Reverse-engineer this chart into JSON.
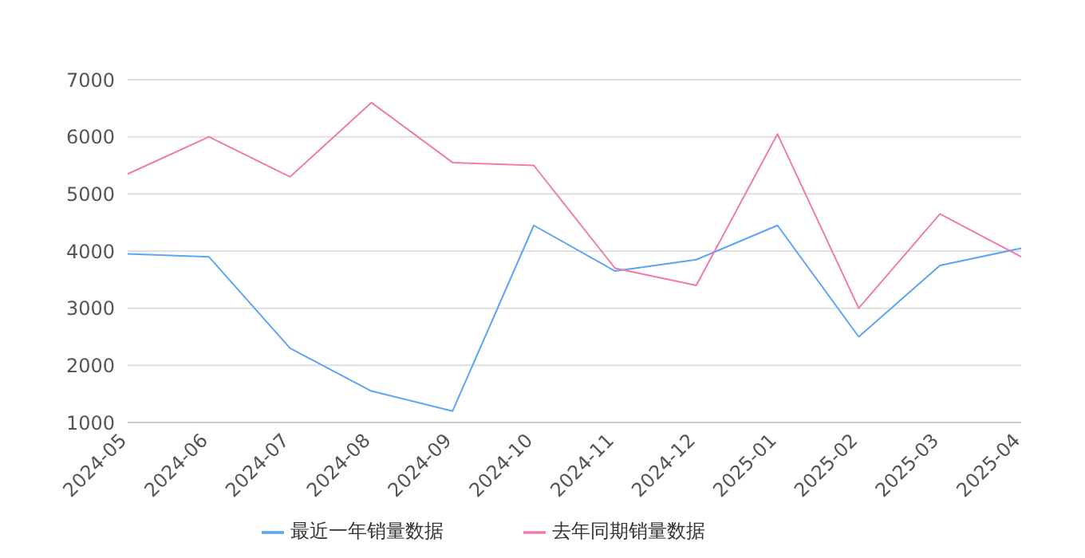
{
  "chart_data": {
    "type": "line",
    "categories": [
      "2024-05",
      "2024-06",
      "2024-07",
      "2024-08",
      "2024-09",
      "2024-10",
      "2024-11",
      "2024-12",
      "2025-01",
      "2025-02",
      "2025-03",
      "2025-04"
    ],
    "series": [
      {
        "name": "最近一年销量数据",
        "color": "#5aa5f5",
        "values": [
          3950,
          3900,
          2300,
          1550,
          1200,
          4450,
          3650,
          3850,
          4450,
          2500,
          3750,
          4050
        ]
      },
      {
        "name": "去年同期销量数据",
        "color": "#f07ab0",
        "values": [
          5350,
          6000,
          5300,
          6600,
          5550,
          5500,
          3700,
          3400,
          6050,
          3000,
          4650,
          3900
        ]
      }
    ],
    "ylim": [
      1000,
      7000
    ],
    "yticks": [
      1000,
      2000,
      3000,
      4000,
      5000,
      6000,
      7000
    ],
    "grid": "y",
    "legend": "bottom",
    "marker": "none",
    "line_style": "solid"
  }
}
